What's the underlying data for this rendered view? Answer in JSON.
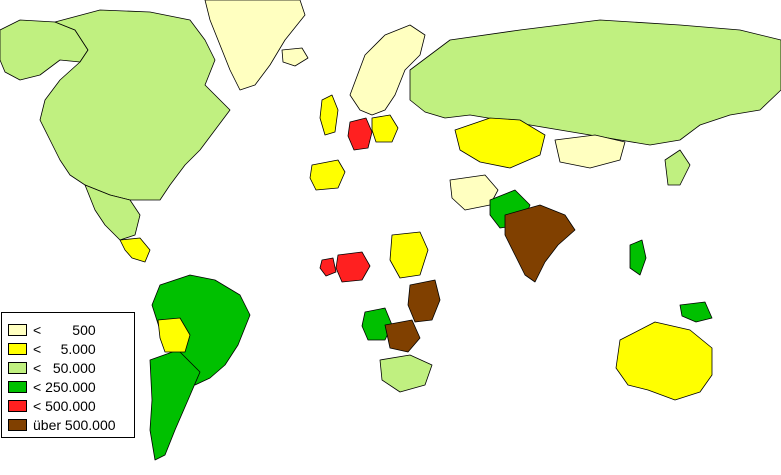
{
  "colors": {
    "ocean": "#ffffff",
    "outline": "#000000",
    "no_data": "#ffffff",
    "lt_500": "#ffffc0",
    "lt_5000": "#ffff00",
    "lt_50000": "#c0f080",
    "lt_250000": "#00c000",
    "lt_500000": "#ff2020",
    "over_500000": "#804000"
  },
  "legend": {
    "items": [
      {
        "label": "<        500",
        "color": "#ffffc0"
      },
      {
        "label": "<     5.000",
        "color": "#ffff00"
      },
      {
        "label": "<   50.000",
        "color": "#c0f080"
      },
      {
        "label": "< 250.000",
        "color": "#00c000"
      },
      {
        "label": "< 500.000",
        "color": "#ff2020"
      },
      {
        "label": "über 500.000",
        "color": "#804000"
      }
    ]
  },
  "regions": [
    {
      "name": "alaska",
      "class": "lt_50000"
    },
    {
      "name": "canada-usa",
      "class": "lt_50000"
    },
    {
      "name": "greenland",
      "class": "lt_500"
    },
    {
      "name": "iceland",
      "class": "lt_500"
    },
    {
      "name": "mexico",
      "class": "lt_50000"
    },
    {
      "name": "central-america",
      "class": "lt_5000"
    },
    {
      "name": "brazil",
      "class": "lt_250000"
    },
    {
      "name": "argentina",
      "class": "lt_250000"
    },
    {
      "name": "bolivia",
      "class": "lt_5000"
    },
    {
      "name": "scandinavia",
      "class": "lt_500"
    },
    {
      "name": "united-kingdom",
      "class": "lt_5000"
    },
    {
      "name": "germany",
      "class": "lt_500000"
    },
    {
      "name": "poland",
      "class": "lt_5000"
    },
    {
      "name": "spain",
      "class": "lt_5000"
    },
    {
      "name": "russia",
      "class": "lt_50000"
    },
    {
      "name": "kazakhstan",
      "class": "lt_5000"
    },
    {
      "name": "mongolia",
      "class": "lt_500"
    },
    {
      "name": "afghanistan",
      "class": "lt_500"
    },
    {
      "name": "pakistan",
      "class": "lt_250000"
    },
    {
      "name": "india",
      "class": "over_500000"
    },
    {
      "name": "sudan",
      "class": "lt_5000"
    },
    {
      "name": "nigeria",
      "class": "lt_500000"
    },
    {
      "name": "ghana",
      "class": "lt_500000"
    },
    {
      "name": "angola",
      "class": "lt_250000"
    },
    {
      "name": "kenya-tanzania",
      "class": "over_500000"
    },
    {
      "name": "zambia",
      "class": "over_500000"
    },
    {
      "name": "south-africa",
      "class": "lt_50000"
    },
    {
      "name": "australia",
      "class": "lt_5000"
    },
    {
      "name": "philippines",
      "class": "lt_250000"
    },
    {
      "name": "png",
      "class": "lt_250000"
    },
    {
      "name": "japan",
      "class": "lt_50000"
    }
  ]
}
